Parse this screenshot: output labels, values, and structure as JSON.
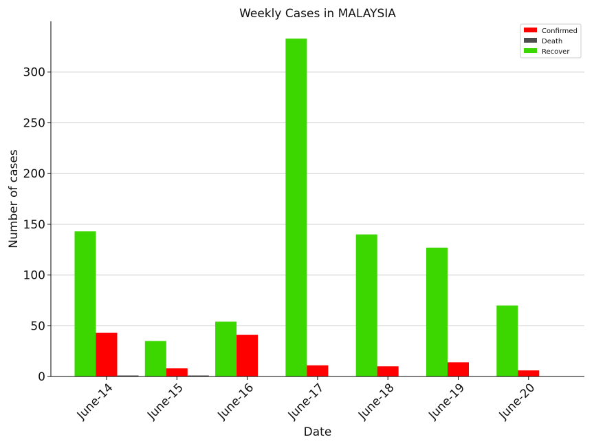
{
  "chart_data": {
    "type": "bar",
    "title": "Weekly Cases in MALAYSIA",
    "xlabel": "Date",
    "ylabel": "Number of cases",
    "categories": [
      "June-14",
      "June-15",
      "June-16",
      "June-17",
      "June-18",
      "June-19",
      "June-20"
    ],
    "series": [
      {
        "name": "Recover",
        "color": "#3cd600",
        "values": [
          143,
          35,
          54,
          333,
          140,
          127,
          70
        ]
      },
      {
        "name": "Confirmed",
        "color": "#ff0000",
        "values": [
          43,
          8,
          41,
          11,
          10,
          14,
          6
        ]
      },
      {
        "name": "Death",
        "color": "#4d4d4d",
        "values": [
          1,
          1,
          0,
          0,
          0,
          0,
          0
        ]
      }
    ],
    "legend_order": [
      "Confirmed",
      "Death",
      "Recover"
    ],
    "ylim": [
      0,
      350
    ],
    "yticks": [
      0,
      50,
      100,
      150,
      200,
      250,
      300
    ],
    "grid": "horizontal",
    "legend_position": "top-right"
  }
}
